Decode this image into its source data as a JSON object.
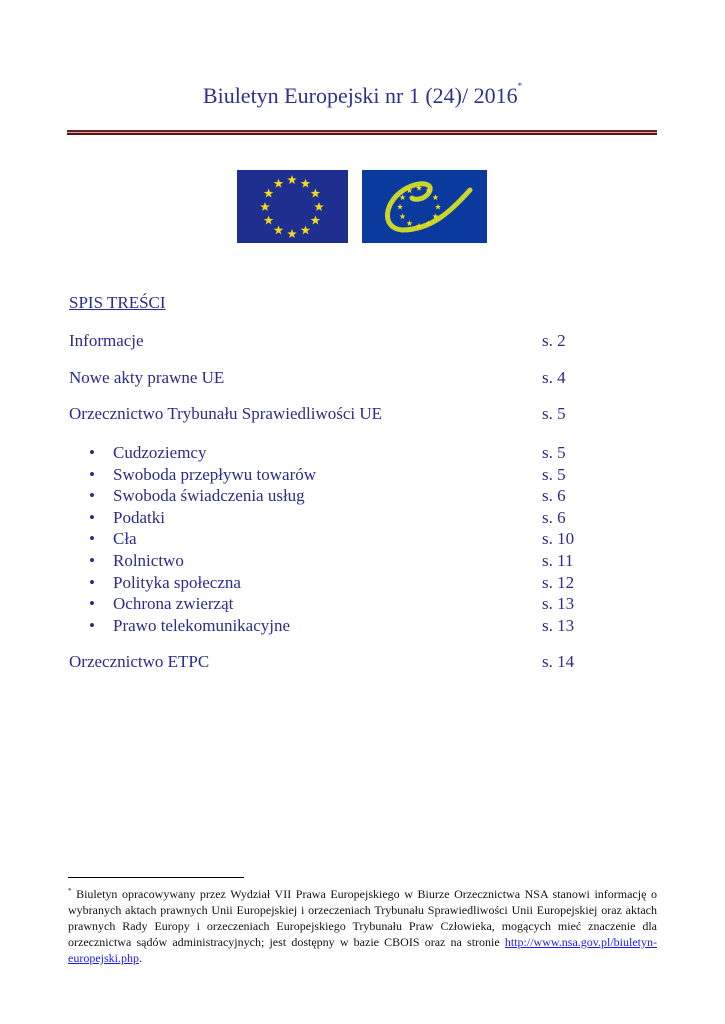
{
  "title": "Biuletyn Europejski nr 1 (24)/ 2016",
  "title_marker": "*",
  "logos": {
    "eu_flag": "eu-flag-icon",
    "coe_logo": "council-of-europe-logo-icon",
    "star_color": "#f5d91c",
    "coe_swirl_color": "#c8d62a"
  },
  "toc": {
    "heading": "SPIS TREŚCI",
    "entries": [
      {
        "label": "Informacje",
        "page": "s. 2"
      },
      {
        "label": "Nowe akty prawne UE",
        "page": "s. 4"
      },
      {
        "label": "Orzecznictwo Trybunału Sprawiedliwości UE",
        "page": "s. 5"
      }
    ],
    "subentries": [
      {
        "label": "Cudzoziemcy",
        "page": "s. 5"
      },
      {
        "label": "Swoboda przepływu towarów",
        "page": "s. 5"
      },
      {
        "label": "Swoboda świadczenia usług",
        "page": "s. 6"
      },
      {
        "label": "Podatki",
        "page": "s. 6"
      },
      {
        "label": "Cła",
        "page": "s. 10"
      },
      {
        "label": "Rolnictwo",
        "page": "s. 11"
      },
      {
        "label": "Polityka społeczna",
        "page": "s. 12"
      },
      {
        "label": "Ochrona zwierząt",
        "page": "s. 13"
      },
      {
        "label": "Prawo telekomunikacyjne",
        "page": "s. 13"
      }
    ],
    "last": {
      "label": "Orzecznictwo ETPC",
      "page": "s. 14"
    },
    "bullet": "•"
  },
  "footnote": {
    "marker": "*",
    "text": "Biuletyn opracowywany przez Wydział VII Prawa Europejskiego w Biurze Orzecznictwa NSA stanowi informację o wybranych aktach prawnych Unii Europejskiej i orzeczeniach Trybunału Sprawiedliwości Unii Europejskiej oraz aktach prawnych Rady Europy i orzeczeniach Europejskiego Trybunału Praw Człowieka, mogących mieć znaczenie dla orzecznictwa sądów administracyjnych; jest dostępny w bazie CBOIS oraz na stronie ",
    "link": "http://www.nsa.gov.pl/biuletyn-europejski.php",
    "end": "."
  }
}
